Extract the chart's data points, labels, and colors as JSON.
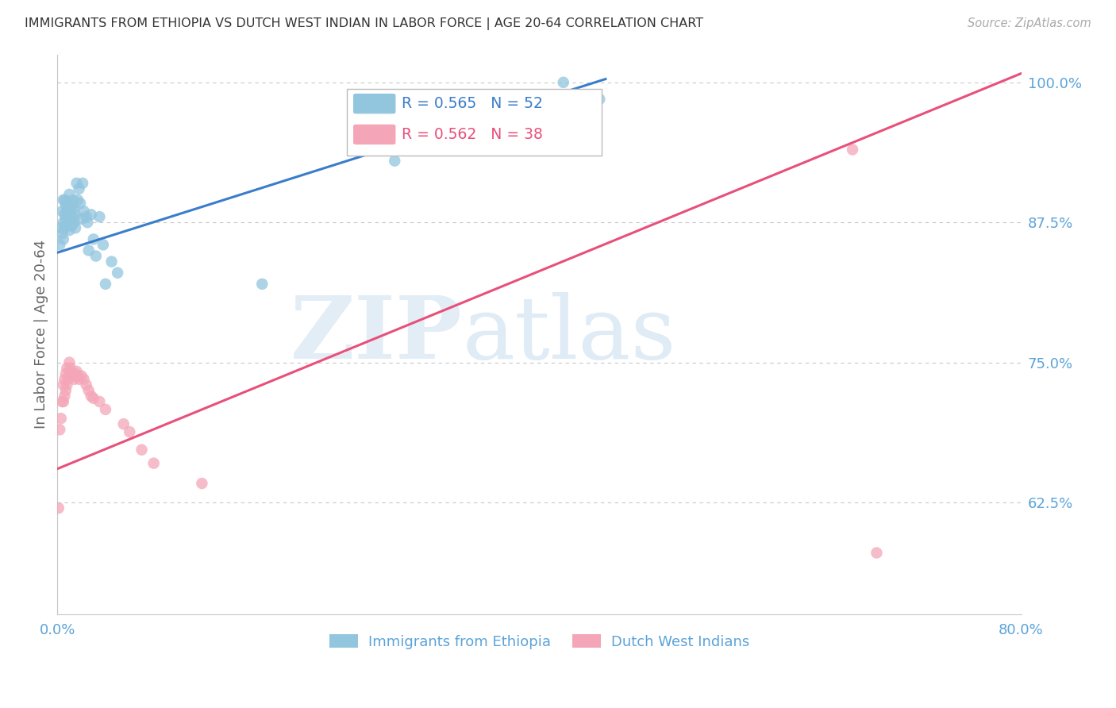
{
  "title": "IMMIGRANTS FROM ETHIOPIA VS DUTCH WEST INDIAN IN LABOR FORCE | AGE 20-64 CORRELATION CHART",
  "source": "Source: ZipAtlas.com",
  "ylabel": "In Labor Force | Age 20-64",
  "xlim": [
    0.0,
    0.8
  ],
  "ylim": [
    0.525,
    1.025
  ],
  "yticks": [
    0.625,
    0.75,
    0.875,
    1.0
  ],
  "ytick_labels": [
    "62.5%",
    "75.0%",
    "87.5%",
    "100.0%"
  ],
  "xticks": [
    0.0,
    0.1,
    0.2,
    0.3,
    0.4,
    0.5,
    0.6,
    0.7,
    0.8
  ],
  "xtick_labels": [
    "0.0%",
    "",
    "",
    "",
    "",
    "",
    "",
    "",
    "80.0%"
  ],
  "blue_color": "#92c5de",
  "pink_color": "#f4a6b8",
  "blue_line_color": "#3a7dc9",
  "pink_line_color": "#e8507a",
  "axis_label_color": "#5ba3d9",
  "grid_color": "#c8c8c8",
  "watermark_zip": "ZIP",
  "watermark_atlas": "atlas",
  "legend_blue_R": "0.565",
  "legend_blue_N": "52",
  "legend_pink_R": "0.562",
  "legend_pink_N": "38",
  "blue_x": [
    0.002,
    0.003,
    0.004,
    0.004,
    0.005,
    0.005,
    0.005,
    0.006,
    0.006,
    0.006,
    0.007,
    0.007,
    0.008,
    0.008,
    0.009,
    0.009,
    0.01,
    0.01,
    0.01,
    0.011,
    0.011,
    0.012,
    0.012,
    0.013,
    0.013,
    0.014,
    0.014,
    0.015,
    0.015,
    0.016,
    0.017,
    0.018,
    0.019,
    0.02,
    0.021,
    0.022,
    0.024,
    0.025,
    0.026,
    0.028,
    0.03,
    0.032,
    0.035,
    0.038,
    0.04,
    0.045,
    0.05,
    0.17,
    0.28,
    0.35,
    0.42,
    0.45
  ],
  "blue_y": [
    0.855,
    0.87,
    0.865,
    0.885,
    0.86,
    0.875,
    0.895,
    0.87,
    0.882,
    0.895,
    0.878,
    0.89,
    0.872,
    0.885,
    0.876,
    0.893,
    0.868,
    0.88,
    0.9,
    0.875,
    0.888,
    0.872,
    0.89,
    0.88,
    0.895,
    0.875,
    0.888,
    0.87,
    0.882,
    0.91,
    0.895,
    0.905,
    0.892,
    0.878,
    0.91,
    0.885,
    0.88,
    0.875,
    0.85,
    0.882,
    0.86,
    0.845,
    0.88,
    0.855,
    0.82,
    0.84,
    0.83,
    0.82,
    0.93,
    0.945,
    1.0,
    0.985
  ],
  "pink_x": [
    0.001,
    0.002,
    0.003,
    0.004,
    0.005,
    0.005,
    0.006,
    0.006,
    0.007,
    0.007,
    0.008,
    0.008,
    0.009,
    0.01,
    0.01,
    0.011,
    0.012,
    0.013,
    0.014,
    0.015,
    0.016,
    0.017,
    0.018,
    0.02,
    0.022,
    0.024,
    0.026,
    0.028,
    0.03,
    0.035,
    0.04,
    0.055,
    0.06,
    0.07,
    0.08,
    0.12,
    0.66,
    0.68
  ],
  "pink_y": [
    0.62,
    0.69,
    0.7,
    0.715,
    0.715,
    0.73,
    0.72,
    0.735,
    0.725,
    0.74,
    0.73,
    0.745,
    0.735,
    0.74,
    0.75,
    0.745,
    0.74,
    0.738,
    0.735,
    0.74,
    0.742,
    0.738,
    0.735,
    0.738,
    0.735,
    0.73,
    0.725,
    0.72,
    0.718,
    0.715,
    0.708,
    0.695,
    0.688,
    0.672,
    0.66,
    0.642,
    0.94,
    0.58
  ],
  "blue_line_x": [
    0.0,
    0.455
  ],
  "blue_line_y": [
    0.848,
    1.003
  ],
  "pink_line_x": [
    0.0,
    0.8
  ],
  "pink_line_y": [
    0.655,
    1.008
  ]
}
